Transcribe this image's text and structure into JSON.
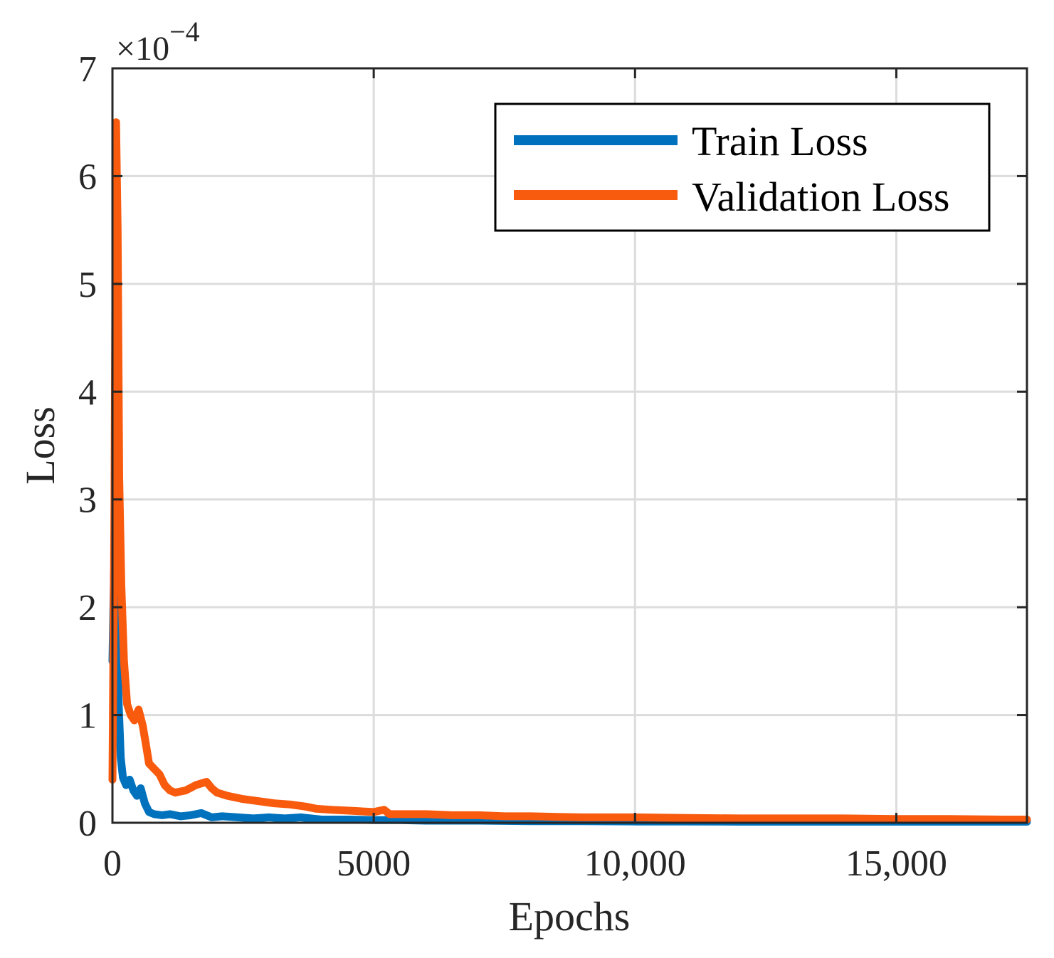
{
  "chart_data": {
    "type": "line",
    "xlabel": "Epochs",
    "ylabel": "Loss",
    "xlim": [
      0,
      17500
    ],
    "ylim": [
      0,
      7
    ],
    "y_multiplier_label": "×10",
    "y_multiplier_exponent": "−4",
    "x_ticks": [
      0,
      5000,
      10000,
      15000
    ],
    "x_tick_labels": [
      "0",
      "5000",
      "10,000",
      "15,000"
    ],
    "y_ticks": [
      0,
      1,
      2,
      3,
      4,
      5,
      6,
      7
    ],
    "y_tick_labels": [
      "0",
      "1",
      "2",
      "3",
      "4",
      "5",
      "6",
      "7"
    ],
    "grid": true,
    "legend_position": "top-right",
    "series": [
      {
        "name": "Train Loss",
        "color": "#0072BD",
        "x": [
          0,
          30,
          60,
          90,
          120,
          160,
          200,
          260,
          330,
          400,
          470,
          540,
          620,
          700,
          800,
          950,
          1100,
          1300,
          1500,
          1700,
          1900,
          2100,
          2400,
          2700,
          3000,
          3300,
          3600,
          4000,
          4500,
          5000,
          5500,
          6000,
          7000,
          8000,
          9000,
          10000,
          11000,
          12000,
          13000,
          14000,
          15000,
          16000,
          17000,
          17500
        ],
        "y": [
          1.5,
          2.3,
          2.0,
          1.6,
          1.1,
          0.6,
          0.42,
          0.35,
          0.4,
          0.3,
          0.25,
          0.32,
          0.18,
          0.1,
          0.08,
          0.07,
          0.08,
          0.06,
          0.07,
          0.09,
          0.05,
          0.06,
          0.05,
          0.04,
          0.05,
          0.04,
          0.05,
          0.03,
          0.03,
          0.025,
          0.025,
          0.02,
          0.02,
          0.015,
          0.015,
          0.012,
          0.012,
          0.01,
          0.01,
          0.01,
          0.01,
          0.01,
          0.01,
          0.01
        ]
      },
      {
        "name": "Validation Loss",
        "color": "#F85A0E",
        "x": [
          0,
          40,
          70,
          100,
          130,
          170,
          220,
          280,
          350,
          420,
          500,
          580,
          650,
          700,
          800,
          900,
          1000,
          1100,
          1200,
          1400,
          1600,
          1800,
          1900,
          2000,
          2200,
          2500,
          2800,
          3100,
          3400,
          3700,
          3900,
          4200,
          4600,
          5000,
          5200,
          5300,
          5500,
          6000,
          6500,
          7000,
          7500,
          8000,
          8500,
          9000,
          10000,
          11000,
          12000,
          13000,
          14000,
          15000,
          16000,
          17000,
          17500
        ],
        "y": [
          0.4,
          3.0,
          6.5,
          5.5,
          3.2,
          2.2,
          1.5,
          1.1,
          1.0,
          0.95,
          1.05,
          0.9,
          0.7,
          0.55,
          0.5,
          0.45,
          0.35,
          0.3,
          0.28,
          0.3,
          0.35,
          0.38,
          0.32,
          0.28,
          0.25,
          0.22,
          0.2,
          0.18,
          0.17,
          0.15,
          0.13,
          0.12,
          0.11,
          0.1,
          0.12,
          0.08,
          0.08,
          0.08,
          0.07,
          0.07,
          0.06,
          0.06,
          0.055,
          0.05,
          0.05,
          0.045,
          0.04,
          0.04,
          0.04,
          0.035,
          0.035,
          0.03,
          0.03
        ]
      }
    ]
  }
}
